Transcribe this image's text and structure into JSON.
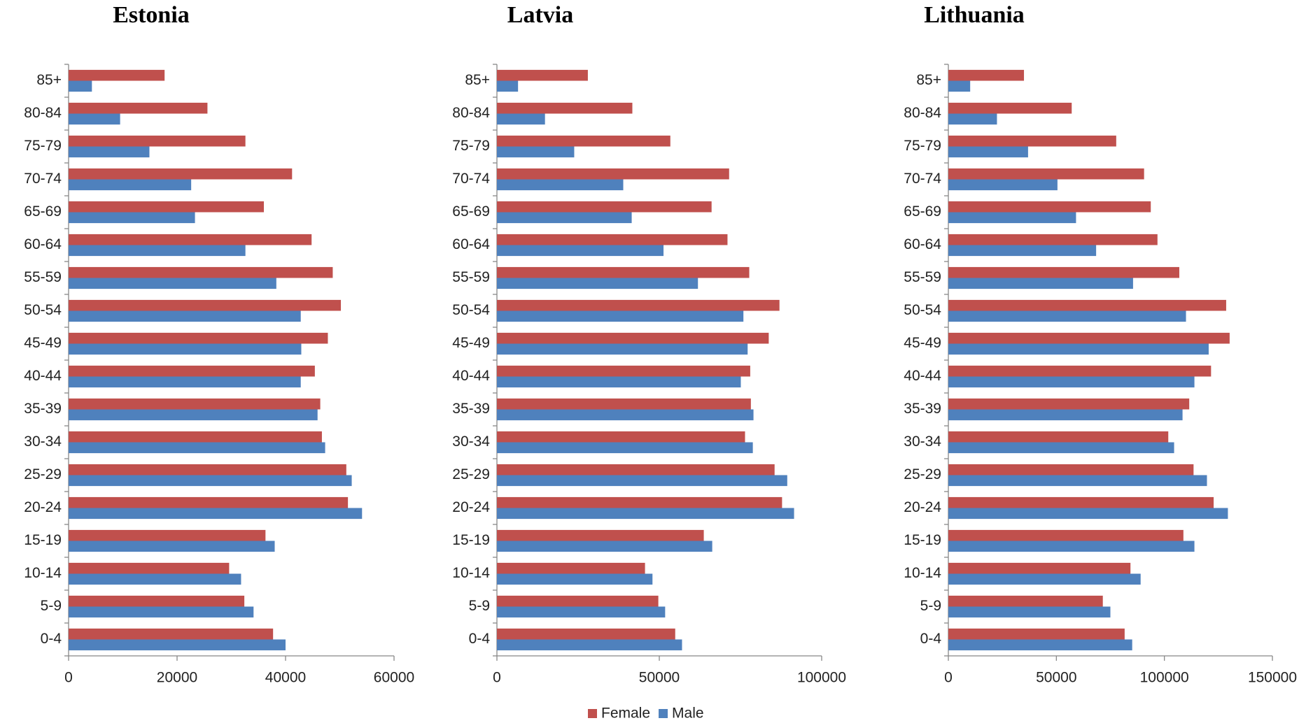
{
  "chart_data": [
    {
      "type": "bar",
      "horizontal": true,
      "title": "Estonia",
      "categories": [
        "0-4",
        "5-9",
        "10-14",
        "15-19",
        "20-24",
        "25-29",
        "30-34",
        "35-39",
        "40-44",
        "45-49",
        "50-54",
        "55-59",
        "60-64",
        "65-69",
        "70-74",
        "75-79",
        "80-84",
        "85+"
      ],
      "series": [
        {
          "name": "Female",
          "color": "#c0504d",
          "values": [
            37700,
            32400,
            29600,
            36300,
            51500,
            51200,
            46700,
            46400,
            45400,
            47800,
            50200,
            48700,
            44800,
            36000,
            41200,
            32600,
            25600,
            17700
          ]
        },
        {
          "name": "Male",
          "color": "#4f81bd",
          "values": [
            40000,
            34100,
            31800,
            38000,
            54100,
            52200,
            47300,
            45900,
            42800,
            42900,
            42800,
            38300,
            32600,
            23300,
            22600,
            14900,
            9500,
            4300
          ]
        }
      ],
      "xlim": [
        0,
        60000
      ],
      "xticks": [
        0,
        20000,
        40000,
        60000
      ]
    },
    {
      "type": "bar",
      "horizontal": true,
      "title": "Latvia",
      "categories": [
        "0-4",
        "5-9",
        "10-14",
        "15-19",
        "20-24",
        "25-29",
        "30-34",
        "35-39",
        "40-44",
        "45-49",
        "50-54",
        "55-59",
        "60-64",
        "65-69",
        "70-74",
        "75-79",
        "80-84",
        "85+"
      ],
      "series": [
        {
          "name": "Female",
          "color": "#c0504d",
          "values": [
            54900,
            49700,
            45600,
            63700,
            87800,
            85500,
            76400,
            78200,
            78000,
            83700,
            87000,
            77700,
            71000,
            66100,
            71500,
            53400,
            41700,
            28000
          ]
        },
        {
          "name": "Male",
          "color": "#4f81bd",
          "values": [
            57000,
            51800,
            47900,
            66300,
            91500,
            89400,
            78800,
            79000,
            75100,
            77200,
            75900,
            61900,
            51300,
            41500,
            38900,
            23800,
            14800,
            6500
          ]
        }
      ],
      "xlim": [
        0,
        100000
      ],
      "xticks": [
        0,
        50000,
        100000
      ]
    },
    {
      "type": "bar",
      "horizontal": true,
      "title": "Lithuania",
      "categories": [
        "0-4",
        "5-9",
        "10-14",
        "15-19",
        "20-24",
        "25-29",
        "30-34",
        "35-39",
        "40-44",
        "45-49",
        "50-54",
        "55-59",
        "60-64",
        "65-69",
        "70-74",
        "75-79",
        "80-84",
        "85+"
      ],
      "series": [
        {
          "name": "Female",
          "color": "#c0504d",
          "values": [
            81600,
            71500,
            84300,
            108800,
            122800,
            113500,
            101800,
            111500,
            121600,
            130200,
            128600,
            106900,
            96800,
            93700,
            90600,
            77700,
            57100,
            35000
          ]
        },
        {
          "name": "Male",
          "color": "#4f81bd",
          "values": [
            85100,
            75000,
            89000,
            113900,
            129400,
            119700,
            104500,
            108400,
            113900,
            120500,
            110000,
            85500,
            68400,
            59100,
            50500,
            36900,
            22500,
            10100
          ]
        }
      ],
      "xlim": [
        0,
        150000
      ],
      "xticks": [
        0,
        50000,
        100000,
        150000
      ]
    }
  ]
}
